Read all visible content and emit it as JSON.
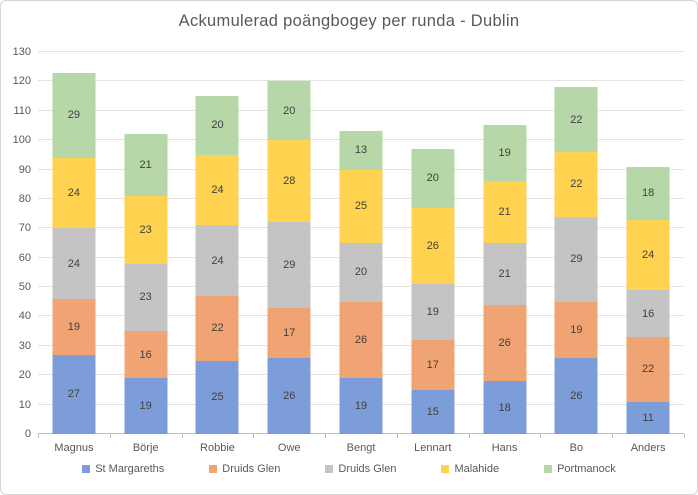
{
  "title": "Ackumulerad poängbogey per runda - Dublin",
  "chart_data": {
    "type": "bar",
    "stacked": true,
    "title": "Ackumulerad poängbogey per runda - Dublin",
    "categories": [
      "Magnus",
      "Börje",
      "Robbie",
      "Owe",
      "Bengt",
      "Lennart",
      "Hans",
      "Bo",
      "Anders"
    ],
    "series": [
      {
        "name": "St Margareths",
        "color": "#7c9dd8",
        "values": [
          27,
          19,
          25,
          26,
          19,
          15,
          18,
          26,
          11
        ]
      },
      {
        "name": "Druids Glen",
        "color": "#f0a373",
        "values": [
          19,
          16,
          22,
          17,
          26,
          17,
          26,
          19,
          22
        ]
      },
      {
        "name": "Druids Glen",
        "color": "#c4c4c4",
        "values": [
          24,
          23,
          24,
          29,
          20,
          19,
          21,
          29,
          16
        ]
      },
      {
        "name": "Malahide",
        "color": "#ffd24f",
        "values": [
          24,
          23,
          24,
          28,
          25,
          26,
          21,
          22,
          24
        ]
      },
      {
        "name": "Portmanock",
        "color": "#b6d7a8",
        "values": [
          29,
          21,
          20,
          20,
          13,
          20,
          19,
          22,
          18
        ]
      }
    ],
    "totals": [
      123,
      102,
      115,
      120,
      103,
      97,
      105,
      118,
      91
    ],
    "xlabel": "",
    "ylabel": "",
    "ylim": [
      0,
      130
    ],
    "yticks": [
      0,
      10,
      20,
      30,
      40,
      50,
      60,
      70,
      80,
      90,
      100,
      110,
      120,
      130
    ],
    "grid": true,
    "legend_position": "bottom",
    "data_labels": true
  }
}
